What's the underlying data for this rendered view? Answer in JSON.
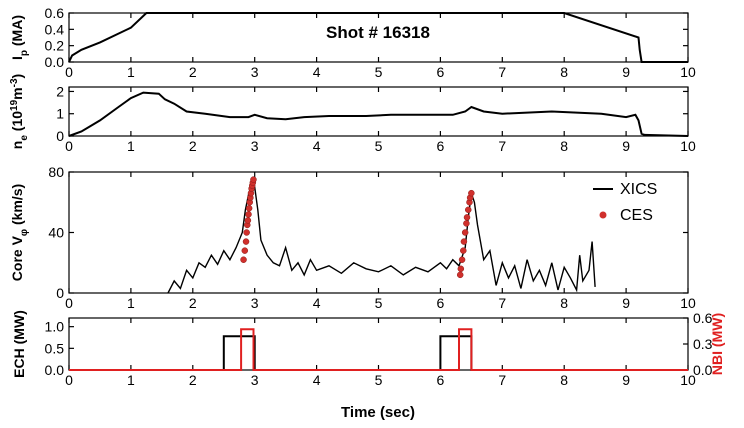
{
  "title": "Shot # 16318",
  "xlabel": "Time (sec)",
  "x_ticks": [
    "0",
    "1",
    "2",
    "3",
    "4",
    "5",
    "6",
    "7",
    "8",
    "9",
    "10"
  ],
  "chart_data": [
    {
      "type": "line",
      "ylabel_main": "I",
      "ylabel_sub": "p",
      "ylabel_unit": "(MA)",
      "xlim": [
        0,
        10
      ],
      "ylim": [
        0,
        0.6
      ],
      "y_ticks": [
        "0.0",
        "0.2",
        "0.4",
        "0.6"
      ],
      "series": [
        {
          "color": "#000000",
          "x": [
            0,
            0.05,
            0.2,
            0.5,
            1.0,
            1.25,
            8.0,
            9.2,
            9.22,
            9.25,
            10
          ],
          "y": [
            0,
            0.08,
            0.15,
            0.24,
            0.42,
            0.6,
            0.6,
            0.3,
            0.15,
            0,
            0
          ]
        }
      ]
    },
    {
      "type": "line",
      "ylabel_main": "n",
      "ylabel_sub": "e",
      "ylabel_unit": "(10",
      "ylabel_sup1": "19",
      "ylabel_unit2": "m",
      "ylabel_sup2": "-3",
      "ylabel_end": ")",
      "xlim": [
        0,
        10
      ],
      "ylim": [
        0,
        2.2
      ],
      "y_ticks": [
        "0",
        "1",
        "2"
      ],
      "series": [
        {
          "color": "#000000",
          "x": [
            0,
            0.2,
            0.5,
            0.8,
            1.0,
            1.2,
            1.45,
            1.55,
            1.7,
            1.9,
            2.2,
            2.6,
            2.9,
            3.0,
            3.2,
            3.5,
            3.8,
            4.2,
            4.8,
            5.2,
            5.8,
            6.2,
            6.4,
            6.5,
            6.7,
            7.0,
            7.4,
            7.8,
            8.2,
            8.6,
            9.0,
            9.15,
            9.2,
            9.25,
            9.3,
            10
          ],
          "y": [
            0,
            0.2,
            0.7,
            1.3,
            1.7,
            1.95,
            1.9,
            1.65,
            1.45,
            1.1,
            1.0,
            0.85,
            0.85,
            0.95,
            0.8,
            0.75,
            0.85,
            0.9,
            0.9,
            0.95,
            0.95,
            0.95,
            1.1,
            1.3,
            1.1,
            1.0,
            1.05,
            1.1,
            1.05,
            1.0,
            0.85,
            0.95,
            0.7,
            0.1,
            0.05,
            0
          ]
        }
      ]
    },
    {
      "type": "scatter",
      "ylabel_main": "Core V",
      "ylabel_sub": "φ",
      "ylabel_unit": "(km/s)",
      "xlim": [
        0,
        10
      ],
      "ylim": [
        0,
        80
      ],
      "y_ticks": [
        "0",
        "40",
        "80"
      ],
      "legend": [
        {
          "label": "XICS",
          "kind": "line",
          "color": "#000000"
        },
        {
          "label": "CES",
          "kind": "marker",
          "color": "#d0302c"
        }
      ],
      "legend_position": "right",
      "series": [
        {
          "name": "XICS",
          "color": "#000000",
          "x": [
            1.6,
            1.7,
            1.8,
            1.9,
            2.0,
            2.1,
            2.2,
            2.3,
            2.4,
            2.5,
            2.6,
            2.7,
            2.8,
            2.85,
            2.9,
            2.95,
            3.0,
            3.05,
            3.1,
            3.2,
            3.3,
            3.4,
            3.5,
            3.6,
            3.7,
            3.8,
            3.9,
            4.0,
            4.2,
            4.4,
            4.6,
            4.8,
            5.0,
            5.2,
            5.4,
            5.6,
            5.8,
            6.0,
            6.1,
            6.2,
            6.3,
            6.4,
            6.45,
            6.5,
            6.55,
            6.6,
            6.7,
            6.8,
            6.9,
            7.0,
            7.1,
            7.2,
            7.3,
            7.4,
            7.5,
            7.6,
            7.7,
            7.8,
            7.9,
            8.0,
            8.1,
            8.2,
            8.25,
            8.3,
            8.4,
            8.45,
            8.5
          ],
          "y": [
            0,
            8,
            3,
            15,
            10,
            20,
            17,
            25,
            19,
            28,
            22,
            30,
            40,
            55,
            65,
            72,
            70,
            55,
            35,
            25,
            20,
            18,
            30,
            15,
            20,
            12,
            22,
            15,
            18,
            13,
            20,
            16,
            14,
            18,
            12,
            17,
            14,
            20,
            16,
            22,
            18,
            30,
            50,
            66,
            60,
            45,
            22,
            28,
            5,
            20,
            10,
            18,
            3,
            22,
            8,
            15,
            5,
            20,
            2,
            17,
            10,
            2,
            25,
            8,
            15,
            34,
            4
          ]
        },
        {
          "name": "CES",
          "color": "#d0302c",
          "x": [
            2.82,
            2.84,
            2.86,
            2.87,
            2.88,
            2.89,
            2.9,
            2.91,
            2.92,
            2.93,
            2.94,
            2.95,
            2.96,
            2.97,
            2.98,
            6.32,
            6.33,
            6.35,
            6.37,
            6.38,
            6.4,
            6.42,
            6.43,
            6.45,
            6.47,
            6.48,
            6.5
          ],
          "y": [
            22,
            28,
            34,
            40,
            45,
            48,
            52,
            56,
            60,
            63,
            66,
            69,
            71,
            73,
            75,
            12,
            16,
            22,
            28,
            34,
            40,
            46,
            50,
            55,
            60,
            63,
            66
          ]
        }
      ]
    },
    {
      "type": "line",
      "ylabel_main": "ECH (MW)",
      "ylabel_right": "NBI (MW)",
      "xlim": [
        0,
        10
      ],
      "ylim": [
        0,
        1.2
      ],
      "y_ticks": [
        "0.0",
        "0.5",
        "1.0"
      ],
      "y2lim": [
        0,
        0.6
      ],
      "y2_ticks": [
        "0.0",
        "0.3",
        "0.6"
      ],
      "colors": {
        "ech": "#000000",
        "nbi": "#e02020"
      },
      "series": [
        {
          "name": "ECH",
          "color": "#000000",
          "x": [
            0,
            2.5,
            2.5,
            3.0,
            3.0,
            6.0,
            6.0,
            6.5,
            6.5,
            10
          ],
          "y": [
            0,
            0,
            0.78,
            0.78,
            0,
            0,
            0.78,
            0.78,
            0,
            0
          ]
        },
        {
          "name": "NBI",
          "color": "#e02020",
          "x": [
            0,
            2.78,
            2.78,
            2.98,
            2.98,
            6.3,
            6.3,
            6.5,
            6.5,
            10
          ],
          "y": [
            0,
            0,
            0.47,
            0.47,
            0,
            0,
            0.47,
            0.47,
            0,
            0
          ]
        }
      ]
    }
  ]
}
